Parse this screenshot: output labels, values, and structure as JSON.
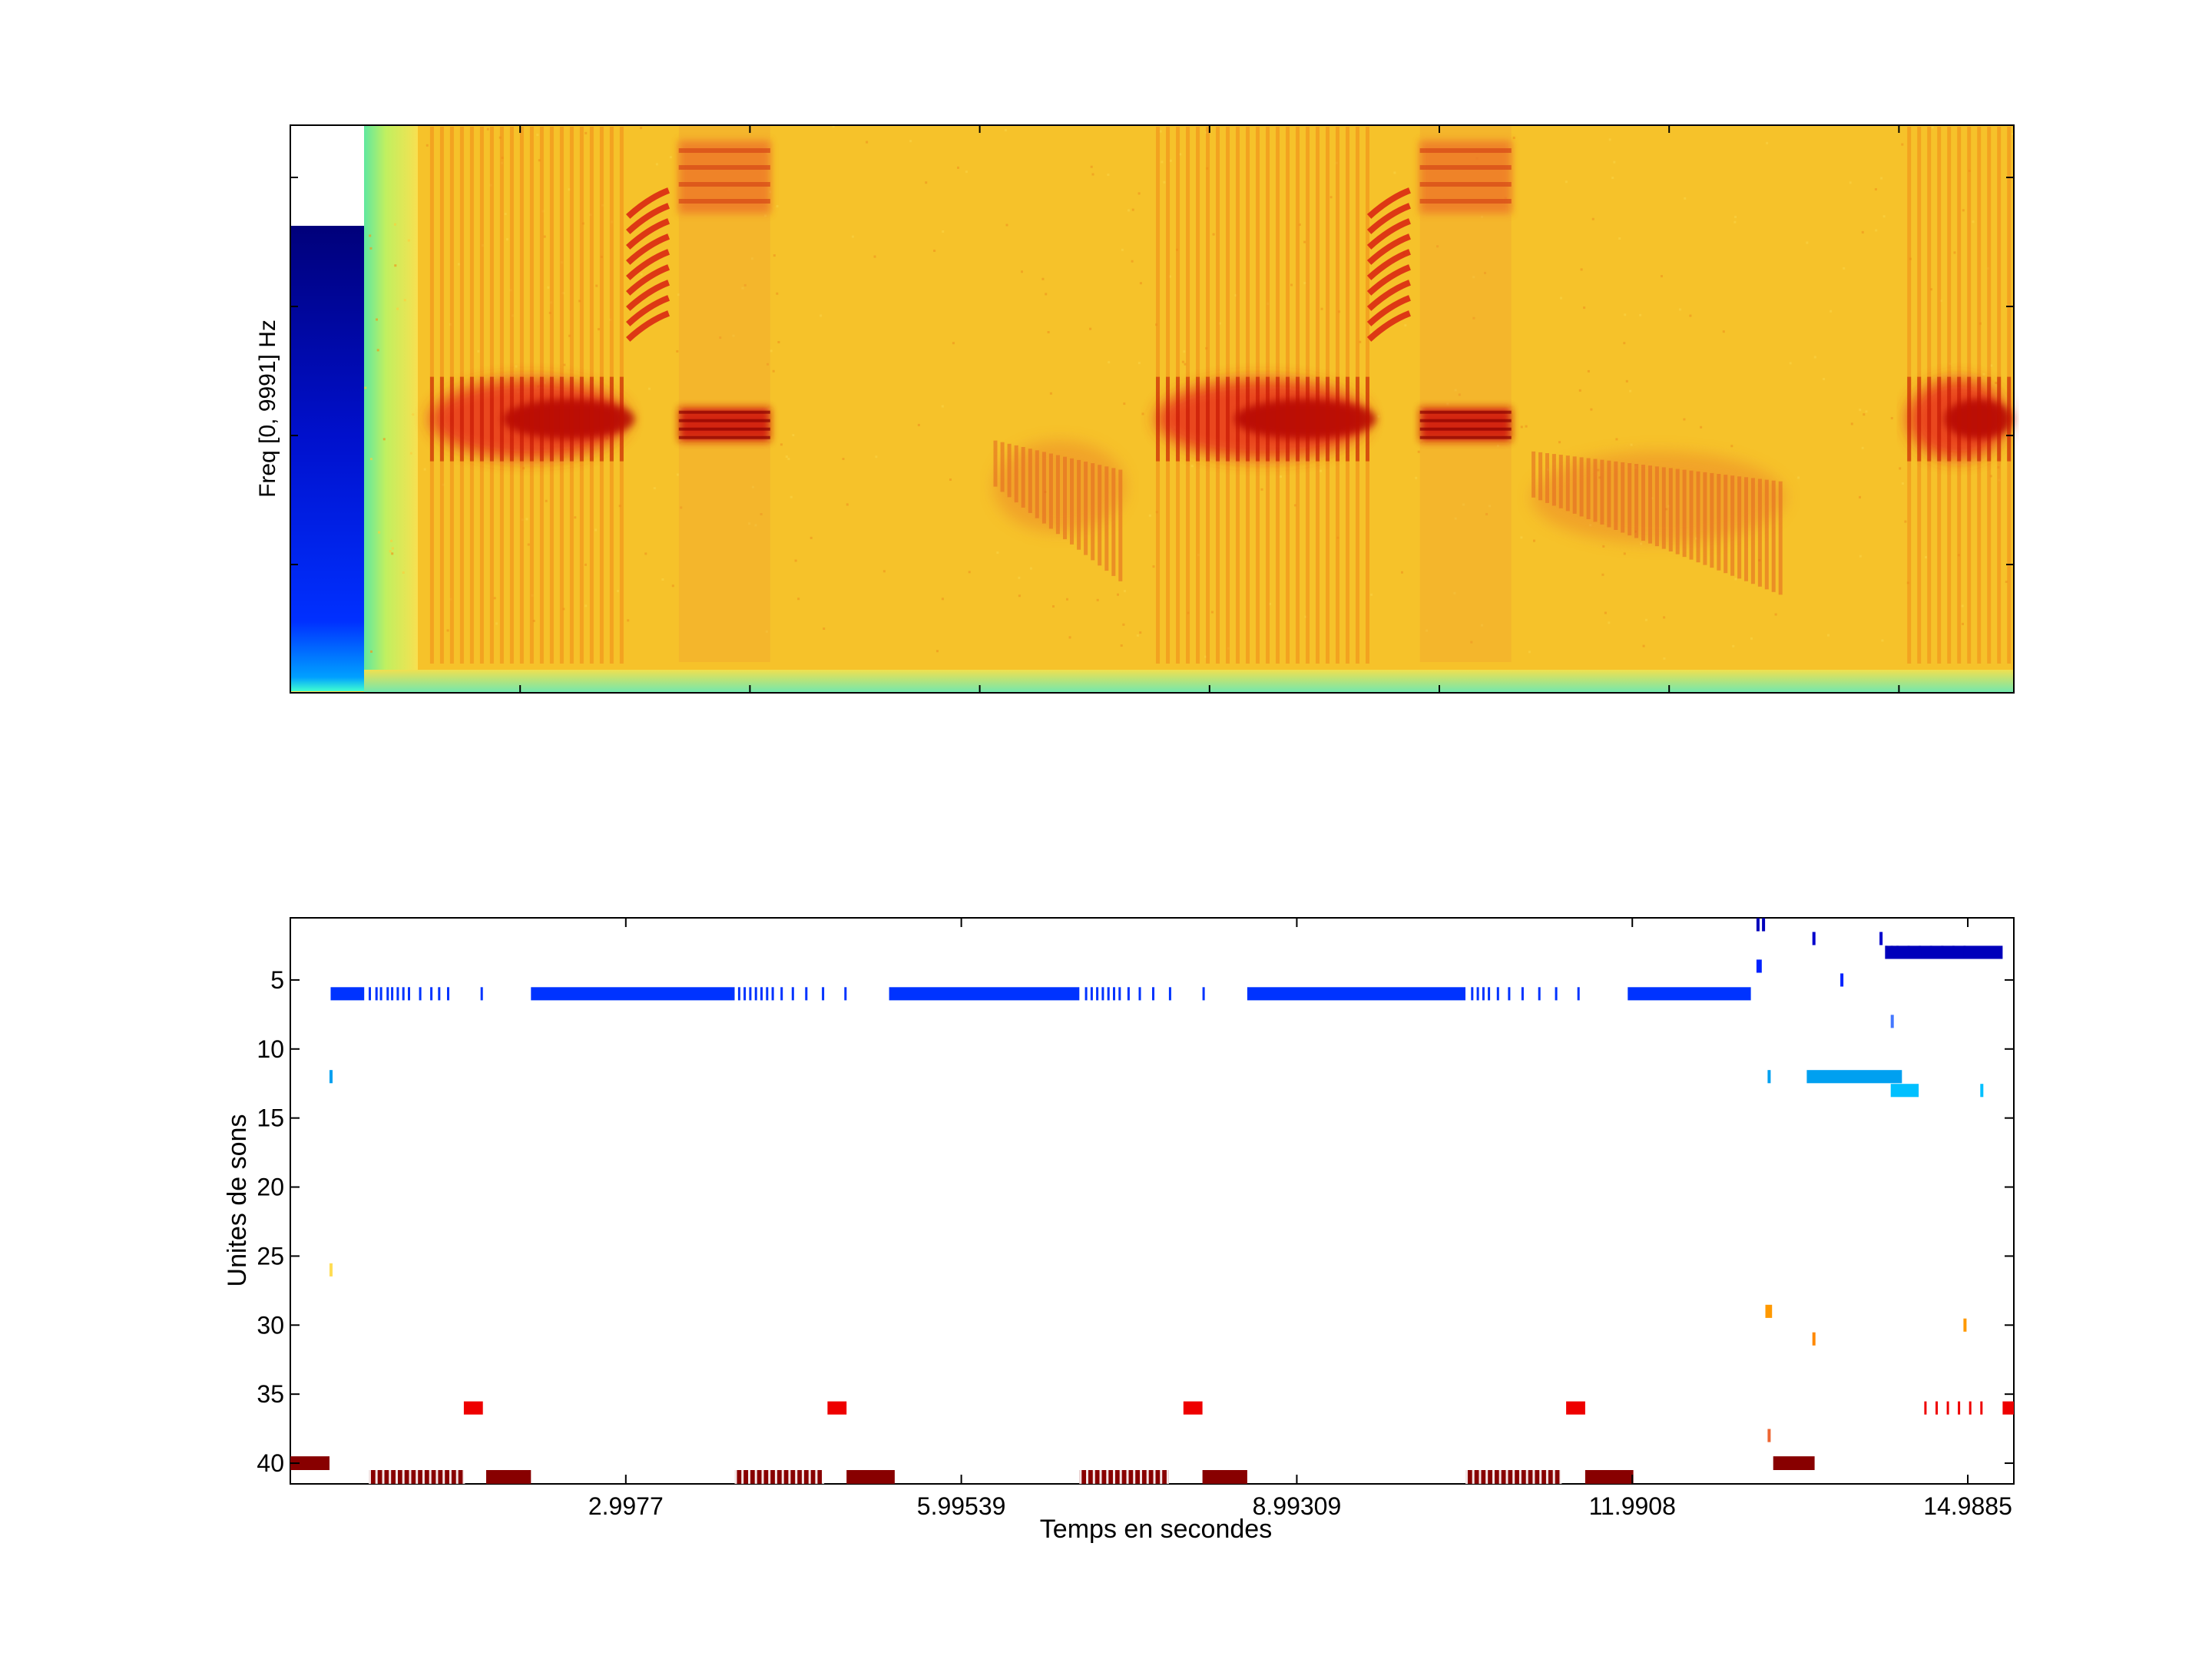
{
  "chart_data": [
    {
      "type": "heatmap",
      "title": "",
      "xlabel": "",
      "ylabel": "Freq [0, 9991] Hz",
      "colormap": "jet",
      "grid": false,
      "description_regions": [
        {
          "label": "harmonic pulse train",
          "t_start": 0.65,
          "t_end": 2.6,
          "freq_center": 4600
        },
        {
          "label": "rising chirp",
          "t_start": 2.6,
          "t_end": 3.0,
          "freq_center": 7400
        },
        {
          "label": "tonal band",
          "t_start": 3.1,
          "t_end": 4.0,
          "freq_center": 4500
        },
        {
          "label": "descending sweep",
          "t_start": 6.2,
          "t_end": 7.5,
          "freq_center": 3500
        },
        {
          "label": "harmonic pulse train",
          "t_start": 7.8,
          "t_end": 9.9,
          "freq_center": 4600
        },
        {
          "label": "rising chirp",
          "t_start": 9.9,
          "t_end": 10.3,
          "freq_center": 7400
        },
        {
          "label": "tonal band",
          "t_start": 10.4,
          "t_end": 11.3,
          "freq_center": 4500
        },
        {
          "label": "descending sweep",
          "t_start": 11.5,
          "t_end": 14.0,
          "freq_center": 3300
        },
        {
          "label": "harmonic pulse train",
          "t_start": 15.2,
          "t_end": 16.2,
          "freq_center": 4600
        }
      ]
    },
    {
      "type": "scatter",
      "title": "",
      "xlabel": "Temps en secondes",
      "ylabel": "Unites de sons",
      "xticks": [
        "2.9977",
        "5.99539",
        "8.99309",
        "11.9908",
        "14.9885"
      ],
      "xtick_values": [
        2.9977,
        5.99539,
        8.99309,
        11.9908,
        14.9885
      ],
      "yticks": [
        "5",
        "10",
        "15",
        "20",
        "25",
        "30",
        "35",
        "40"
      ],
      "ytick_values": [
        5,
        10,
        15,
        20,
        25,
        30,
        35,
        40
      ],
      "xlim": [
        0,
        15.4
      ],
      "ylim": [
        41.5,
        0.5
      ],
      "y_reversed": true,
      "grid": false,
      "series": [
        {
          "unit": 6,
          "color": "#0033ff",
          "intervals": [
            [
              0.36,
              0.66
            ],
            [
              2.15,
              3.97
            ],
            [
              5.35,
              7.05
            ],
            [
              8.55,
              10.5
            ],
            [
              11.95,
              13.05
            ]
          ],
          "ticks": [
            0.7,
            0.76,
            0.8,
            0.86,
            0.9,
            0.95,
            1.0,
            1.05,
            1.15,
            1.25,
            1.32,
            1.4,
            1.7,
            4.0,
            4.05,
            4.1,
            4.15,
            4.2,
            4.25,
            4.3,
            4.38,
            4.48,
            4.6,
            4.75,
            4.95,
            7.1,
            7.15,
            7.2,
            7.25,
            7.3,
            7.35,
            7.4,
            7.48,
            7.58,
            7.7,
            7.85,
            8.15,
            10.55,
            10.6,
            10.65,
            10.7,
            10.78,
            10.88,
            11.0,
            11.15,
            11.3,
            11.5
          ]
        },
        {
          "unit": 1,
          "color": "#0000bb",
          "marks": [
            13.1,
            13.15
          ]
        },
        {
          "unit": 2,
          "color": "#0000cc",
          "marks": [
            13.6,
            14.2
          ]
        },
        {
          "unit": 3,
          "color": "#0000bb",
          "intervals": [
            [
              14.25,
              15.3
            ]
          ],
          "ticks": [
            14.25,
            14.3,
            14.35,
            14.45,
            14.55,
            14.65,
            14.75,
            14.85,
            14.95
          ]
        },
        {
          "unit": 4,
          "color": "#0022ff",
          "marks": [
            13.1,
            13.12
          ]
        },
        {
          "unit": 5,
          "color": "#0022ff",
          "marks": [
            13.85
          ]
        },
        {
          "unit": 8,
          "color": "#4477ff",
          "marks": [
            14.3
          ]
        },
        {
          "unit": 12,
          "color": "#00a0f0",
          "intervals": [
            [
              13.55,
              14.4
            ]
          ],
          "marks": [
            0.35,
            13.2
          ]
        },
        {
          "unit": 13,
          "color": "#00c0ff",
          "intervals": [
            [
              14.3,
              14.55
            ]
          ],
          "marks": [
            15.1
          ]
        },
        {
          "unit": 26,
          "color": "#ffdd55",
          "marks": [
            0.35
          ]
        },
        {
          "unit": 29,
          "color": "#ff9900",
          "intervals": [
            [
              13.18,
              13.24
            ]
          ]
        },
        {
          "unit": 30,
          "color": "#ff9900",
          "marks": [
            14.95
          ]
        },
        {
          "unit": 31,
          "color": "#ff8800",
          "marks": [
            13.6
          ]
        },
        {
          "unit": 36,
          "color": "#ee0000",
          "intervals": [
            [
              1.55,
              1.72
            ],
            [
              4.8,
              4.97
            ],
            [
              7.98,
              8.15
            ],
            [
              11.4,
              11.57
            ],
            [
              15.3,
              15.4
            ]
          ],
          "ticks": [
            14.6,
            14.7,
            14.8,
            14.9,
            15.0,
            15.1
          ]
        },
        {
          "unit": 38,
          "color": "#ee6633",
          "marks": [
            13.2
          ]
        },
        {
          "unit": 40,
          "color": "#880000",
          "intervals": [
            [
              0,
              0.35
            ],
            [
              13.25,
              13.62
            ]
          ]
        },
        {
          "unit": 41,
          "color": "#880000",
          "intervals": [
            [
              0.7,
              1.55
            ],
            [
              1.75,
              2.15
            ],
            [
              3.97,
              4.75
            ],
            [
              4.97,
              5.4
            ],
            [
              7.05,
              7.85
            ],
            [
              8.15,
              8.55
            ],
            [
              10.5,
              11.35
            ],
            [
              11.57,
              12.0
            ]
          ],
          "ticks_in_intervals": [
            [
              0.7,
              1.55
            ],
            [
              3.97,
              4.75
            ],
            [
              7.05,
              7.85
            ],
            [
              10.5,
              11.35
            ]
          ]
        }
      ]
    }
  ]
}
